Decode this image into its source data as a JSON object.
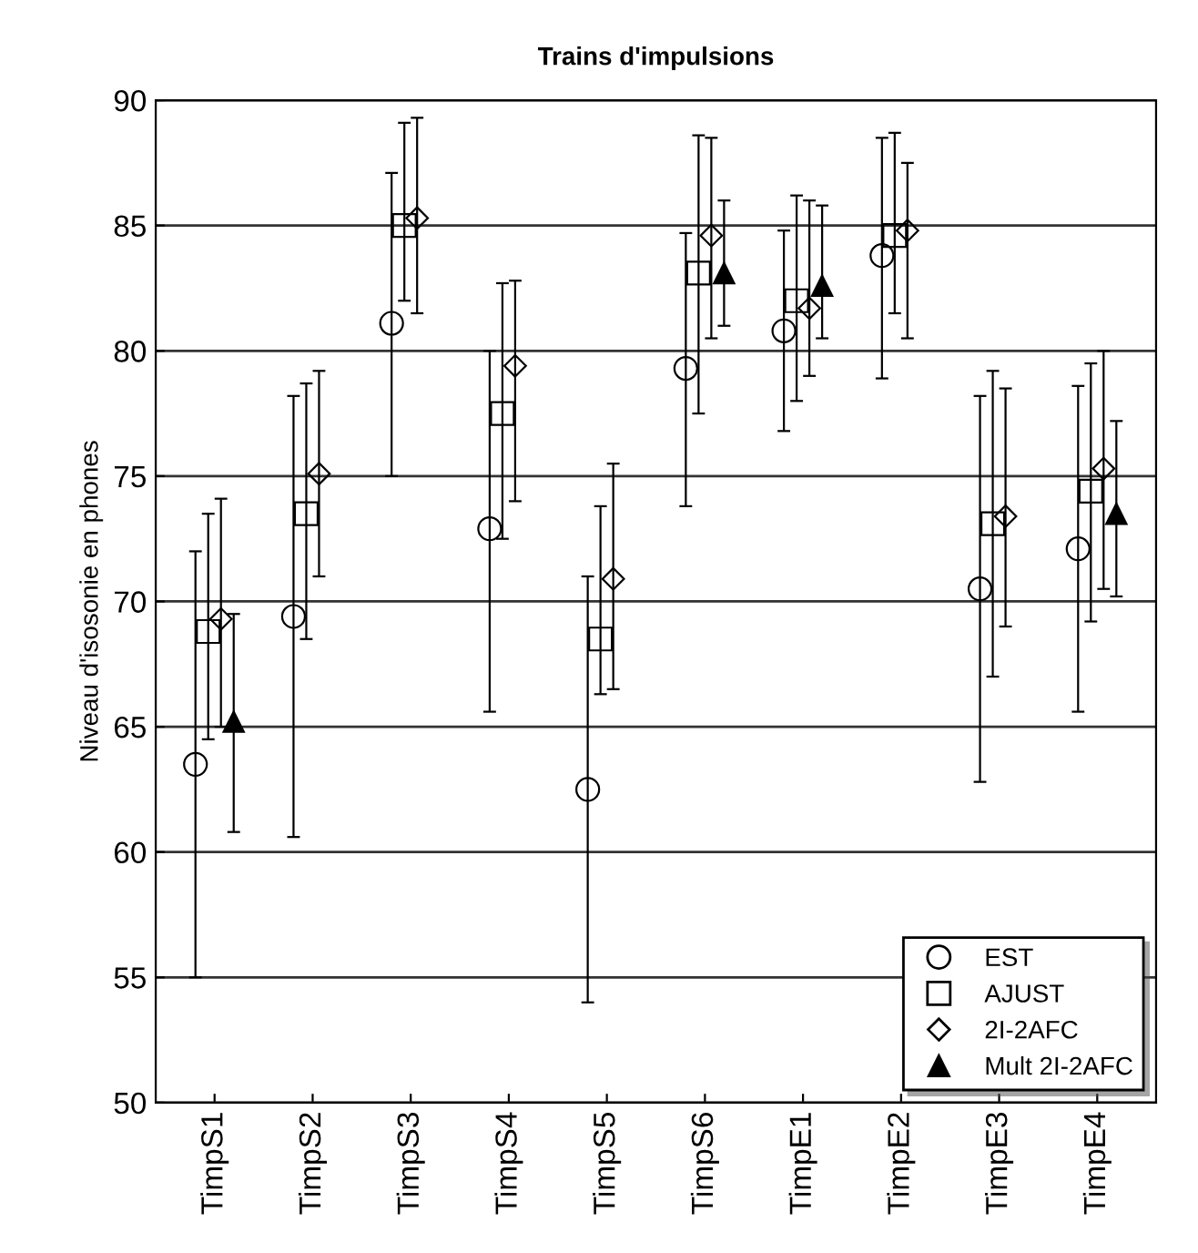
{
  "chart_data": {
    "type": "scatter",
    "title": "Trains d'impulsions",
    "ylabel": "Niveau d'isosonie en phones",
    "categories": [
      "TimpS1",
      "TimpS2",
      "TimpS3",
      "TimpS4",
      "TimpS5",
      "TimpS6",
      "TimpE1",
      "TimpE2",
      "TimpE3",
      "TimpE4"
    ],
    "ylim": [
      50,
      90
    ],
    "yticks": [
      50,
      55,
      60,
      65,
      70,
      75,
      80,
      85,
      90
    ],
    "grid": "y",
    "legend": "bottom right",
    "series": [
      {
        "name": "EST",
        "color": "#000000",
        "marker": "circle",
        "values": [
          63.5,
          69.4,
          81.1,
          72.9,
          62.5,
          79.3,
          80.8,
          83.8,
          70.5,
          72.1
        ],
        "errors": [
          [
            55,
            72
          ],
          [
            60.6,
            78.2
          ],
          [
            75,
            87.1
          ],
          [
            65.6,
            80
          ],
          [
            54,
            71
          ],
          [
            73.8,
            84.7
          ],
          [
            76.8,
            84.8
          ],
          [
            78.9,
            88.5
          ],
          [
            62.8,
            78.2
          ],
          [
            65.6,
            78.6
          ]
        ]
      },
      {
        "name": "AJUST",
        "color": "#000000",
        "marker": "square",
        "values": [
          68.8,
          73.5,
          85,
          77.5,
          68.5,
          83.1,
          82,
          84.6,
          73.1,
          74.4
        ],
        "errors": [
          [
            64.5,
            73.5
          ],
          [
            68.5,
            78.7
          ],
          [
            82,
            89.1
          ],
          [
            72.5,
            82.7
          ],
          [
            66.3,
            73.8
          ],
          [
            77.5,
            88.6
          ],
          [
            78,
            86.2
          ],
          [
            81.5,
            88.7
          ],
          [
            67,
            79.2
          ],
          [
            69.2,
            79.5
          ]
        ]
      },
      {
        "name": "2I-2AFC",
        "color": "#000000",
        "marker": "diamond",
        "values": [
          69.3,
          75.1,
          85.3,
          79.4,
          70.9,
          84.6,
          81.7,
          84.8,
          73.4,
          75.3
        ],
        "errors": [
          [
            65,
            74.1
          ],
          [
            71,
            79.2
          ],
          [
            81.5,
            89.3
          ],
          [
            74,
            82.8
          ],
          [
            66.5,
            75.5
          ],
          [
            80.5,
            88.5
          ],
          [
            79,
            86
          ],
          [
            80.5,
            87.5
          ],
          [
            69,
            78.5
          ],
          [
            70.5,
            80
          ]
        ]
      },
      {
        "name": "Mult 2I-2AFC",
        "color": "#000000",
        "marker": "triangle",
        "values": [
          65.2,
          null,
          null,
          null,
          null,
          83.1,
          82.6,
          null,
          null,
          73.5
        ],
        "errors": [
          [
            60.8,
            69.5
          ],
          null,
          null,
          null,
          null,
          [
            81,
            86
          ],
          [
            80.5,
            85.8
          ],
          null,
          null,
          [
            70.2,
            77.2
          ]
        ]
      }
    ]
  }
}
